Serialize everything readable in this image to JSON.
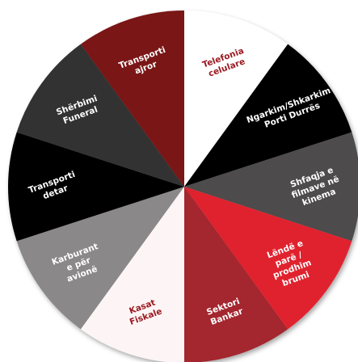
{
  "segments": [
    {
      "label": [
        "Telefonia",
        "celulare"
      ],
      "color": "#ffffff",
      "text_color": "#9b1b22"
    },
    {
      "label": [
        "Ngarkim/Shkarkim",
        "Porti Durrës"
      ],
      "color": "#000000",
      "text_color": "#ffffff"
    },
    {
      "label": [
        "Shfaqja e",
        "filmave në",
        "kinema"
      ],
      "color": "#4d4b4c",
      "text_color": "#ffffff"
    },
    {
      "label": [
        "Lëndë e",
        "parë /",
        "prodhim",
        "brumi"
      ],
      "color": "#e0202e",
      "text_color": "#ffffff"
    },
    {
      "label": [
        "Sektori",
        "Bankar"
      ],
      "color": "#a4262d",
      "text_color": "#ffffff"
    },
    {
      "label": [
        "Kasat",
        "Fiskale"
      ],
      "color": "#fdf5f5",
      "text_color": "#9b1b22"
    },
    {
      "label": [
        "Karburant",
        "e për",
        "avionë"
      ],
      "color": "#8a8889",
      "text_color": "#ffffff"
    },
    {
      "label": [
        "Transporti",
        "detar"
      ],
      "color": "#000000",
      "text_color": "#ffffff"
    },
    {
      "label": [
        "Shërbimi",
        "Funeral"
      ],
      "color": "#333132",
      "text_color": "#ffffff"
    },
    {
      "label": [
        "Transporti",
        "ajror"
      ],
      "color": "#7a1318",
      "text_color": "#ffffff"
    }
  ]
}
